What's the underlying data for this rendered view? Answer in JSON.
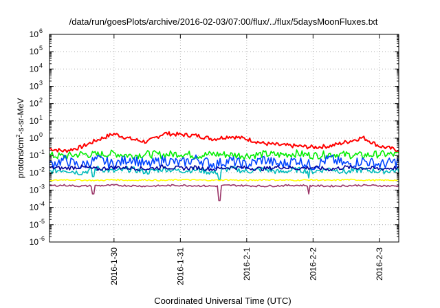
{
  "chart_data": {
    "type": "line",
    "title": "/data/run/goesPlots/archive/2016-02-03/07:00/flux/../flux/5daysMoonFluxes.txt",
    "xlabel": "Coordinated Universal Time (UTC)",
    "ylabel": "protons/cm2-s-sr-MeV",
    "y_scale": "log",
    "ylim": [
      1e-06,
      1000000.0
    ],
    "xlim": [
      "2016-01-29 00:40",
      "2016-02-03 07:00"
    ],
    "grid": true,
    "x_ticks": [
      {
        "date": "2016-01-30 00:00",
        "label": "2016-1-30"
      },
      {
        "date": "2016-01-31 00:00",
        "label": "2016-1-31"
      },
      {
        "date": "2016-02-01 00:00",
        "label": "2016-2-1"
      },
      {
        "date": "2016-02-02 00:00",
        "label": "2016-2-2"
      },
      {
        "date": "2016-02-03 00:00",
        "label": "2016-2-3"
      }
    ],
    "y_ticks": [
      {
        "value": 1e-06,
        "base": "10",
        "exp": "-6"
      },
      {
        "value": 1e-05,
        "base": "10",
        "exp": "-5"
      },
      {
        "value": 0.0001,
        "base": "10",
        "exp": "-4"
      },
      {
        "value": 0.001,
        "base": "10",
        "exp": "-3"
      },
      {
        "value": 0.01,
        "base": "10",
        "exp": "-2"
      },
      {
        "value": 0.1,
        "base": "10",
        "exp": "-1"
      },
      {
        "value": 1.0,
        "base": "10",
        "exp": "0"
      },
      {
        "value": 10.0,
        "base": "10",
        "exp": "1"
      },
      {
        "value": 100.0,
        "base": "10",
        "exp": "2"
      },
      {
        "value": 1000.0,
        "base": "10",
        "exp": "3"
      },
      {
        "value": 10000.0,
        "base": "10",
        "exp": "4"
      },
      {
        "value": 100000.0,
        "base": "10",
        "exp": "5"
      },
      {
        "value": 1000000.0,
        "base": "10",
        "exp": "6"
      }
    ],
    "x": [
      "2016-01-29 00:40",
      "2016-01-29 06:00",
      "2016-01-29 12:00",
      "2016-01-29 18:00",
      "2016-01-30 00:00",
      "2016-01-30 06:00",
      "2016-01-30 12:00",
      "2016-01-30 18:00",
      "2016-01-31 00:00",
      "2016-01-31 06:00",
      "2016-01-31 12:00",
      "2016-01-31 18:00",
      "2016-02-01 00:00",
      "2016-02-01 06:00",
      "2016-02-01 12:00",
      "2016-02-01 18:00",
      "2016-02-02 00:00",
      "2016-02-02 06:00",
      "2016-02-02 12:00",
      "2016-02-02 18:00",
      "2016-02-03 00:00",
      "2016-02-03 07:00"
    ],
    "series": [
      {
        "color": "#ff0000",
        "values": [
          0.25,
          0.18,
          0.3,
          0.8,
          1.8,
          0.9,
          0.6,
          1.9,
          1.6,
          1.4,
          0.9,
          1.3,
          0.9,
          0.5,
          0.4,
          0.35,
          0.3,
          0.35,
          0.6,
          1.1,
          0.35,
          0.2
        ]
      },
      {
        "color": "#00ee00",
        "values": [
          0.1,
          0.09,
          0.12,
          0.11,
          0.13,
          0.1,
          0.12,
          0.11,
          0.13,
          0.1,
          0.12,
          0.11,
          0.1,
          0.12,
          0.11,
          0.13,
          0.1,
          0.12,
          0.11,
          0.1,
          0.12,
          0.11
        ]
      },
      {
        "color": "#00bbbb",
        "values": [
          0.012,
          0.015,
          0.01,
          0.018,
          0.012,
          0.016,
          0.011,
          0.017,
          0.013,
          0.015,
          0.01,
          0.018,
          0.012,
          0.016,
          0.011,
          0.015,
          0.012,
          0.017,
          0.011,
          0.015,
          0.012,
          0.014
        ]
      },
      {
        "color": "#0044ff",
        "values": [
          0.03,
          0.055,
          0.025,
          0.06,
          0.03,
          0.07,
          0.028,
          0.055,
          0.035,
          0.065,
          0.03,
          0.05,
          0.028,
          0.06,
          0.03,
          0.055,
          0.025,
          0.065,
          0.03,
          0.05,
          0.03,
          0.045
        ]
      },
      {
        "color": "#000099",
        "values": [
          0.02,
          0.018,
          0.022,
          0.016,
          0.021,
          0.019,
          0.017,
          0.022,
          0.018,
          0.02,
          0.016,
          0.021,
          0.019,
          0.017,
          0.022,
          0.018,
          0.02,
          0.016,
          0.021,
          0.019,
          0.017,
          0.02
        ]
      },
      {
        "color": "#ffff00",
        "values": [
          0.0035,
          0.004,
          0.0038,
          0.0036,
          0.004,
          0.0037,
          0.0039,
          0.0036,
          0.004,
          0.0038,
          0.0037,
          0.0039,
          0.0036,
          0.004,
          0.0038,
          0.0037,
          0.0039,
          0.0036,
          0.004,
          0.0038,
          0.0037,
          0.0038
        ]
      },
      {
        "color": "#993366",
        "values": [
          0.0018,
          0.0019,
          0.0017,
          0.0018,
          0.0019,
          0.0018,
          0.0017,
          0.0018,
          0.0019,
          0.0018,
          0.0017,
          0.0019,
          0.0018,
          0.0017,
          0.0018,
          0.0019,
          0.0018,
          0.0017,
          0.0018,
          0.0019,
          0.0018,
          0.0017
        ]
      }
    ],
    "dips": [
      {
        "series": 6,
        "date": "2016-01-29 16:30",
        "value": 0.0006
      },
      {
        "series": 6,
        "date": "2016-01-31 14:00",
        "value": 0.00025
      },
      {
        "series": 6,
        "date": "2016-02-01 22:30",
        "value": 0.0006
      },
      {
        "series": 2,
        "date": "2016-01-29 16:30",
        "value": 0.006
      },
      {
        "series": 2,
        "date": "2016-01-31 14:00",
        "value": 0.004
      },
      {
        "series": 2,
        "date": "2016-02-01 22:30",
        "value": 0.005
      }
    ]
  }
}
